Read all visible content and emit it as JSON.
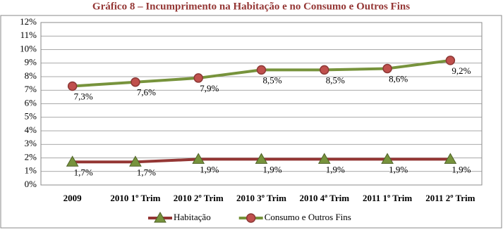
{
  "chart_data": {
    "type": "line",
    "title": "Gráfico 8 – Incumprimento na Habitação e no Consumo e Outros Fins",
    "categories": [
      "2009",
      "2010 1º Trim",
      "2010 2º Trim",
      "2010 3º Trim",
      "2010 4ª Trim",
      "2011 1º Trim",
      "2011 2º Trim"
    ],
    "series": [
      {
        "name": "Habitação",
        "color": "#943634",
        "marker_color": "#77933c",
        "marker": "triangle",
        "values": [
          1.7,
          1.7,
          1.9,
          1.9,
          1.9,
          1.9,
          1.9
        ],
        "value_labels": [
          "1,7%",
          "1,7%",
          "1,9%",
          "1,9%",
          "1,9%",
          "1,9%",
          "1,9%"
        ]
      },
      {
        "name": "Consumo e Outros Fins",
        "color": "#77933c",
        "marker_color": "#c0504d",
        "marker": "circle",
        "values": [
          7.3,
          7.6,
          7.9,
          8.5,
          8.5,
          8.6,
          9.2
        ],
        "value_labels": [
          "7,3%",
          "7,6%",
          "7,9%",
          "8,5%",
          "8,5%",
          "8,6%",
          "9,2%"
        ]
      }
    ],
    "ylim": [
      0,
      12
    ],
    "yticks": [
      {
        "value": 0,
        "label": "0%"
      },
      {
        "value": 1,
        "label": "1%"
      },
      {
        "value": 2,
        "label": "2%"
      },
      {
        "value": 3,
        "label": "3%"
      },
      {
        "value": 4,
        "label": "4%"
      },
      {
        "value": 5,
        "label": "5%"
      },
      {
        "value": 6,
        "label": "6%"
      },
      {
        "value": 7,
        "label": "7%"
      },
      {
        "value": 8,
        "label": "8%"
      },
      {
        "value": 9,
        "label": "9%"
      },
      {
        "value": 10,
        "label": "10%"
      },
      {
        "value": 11,
        "label": "11%"
      },
      {
        "value": 12,
        "label": "12%"
      }
    ],
    "grid": true,
    "legend": "bottom"
  }
}
